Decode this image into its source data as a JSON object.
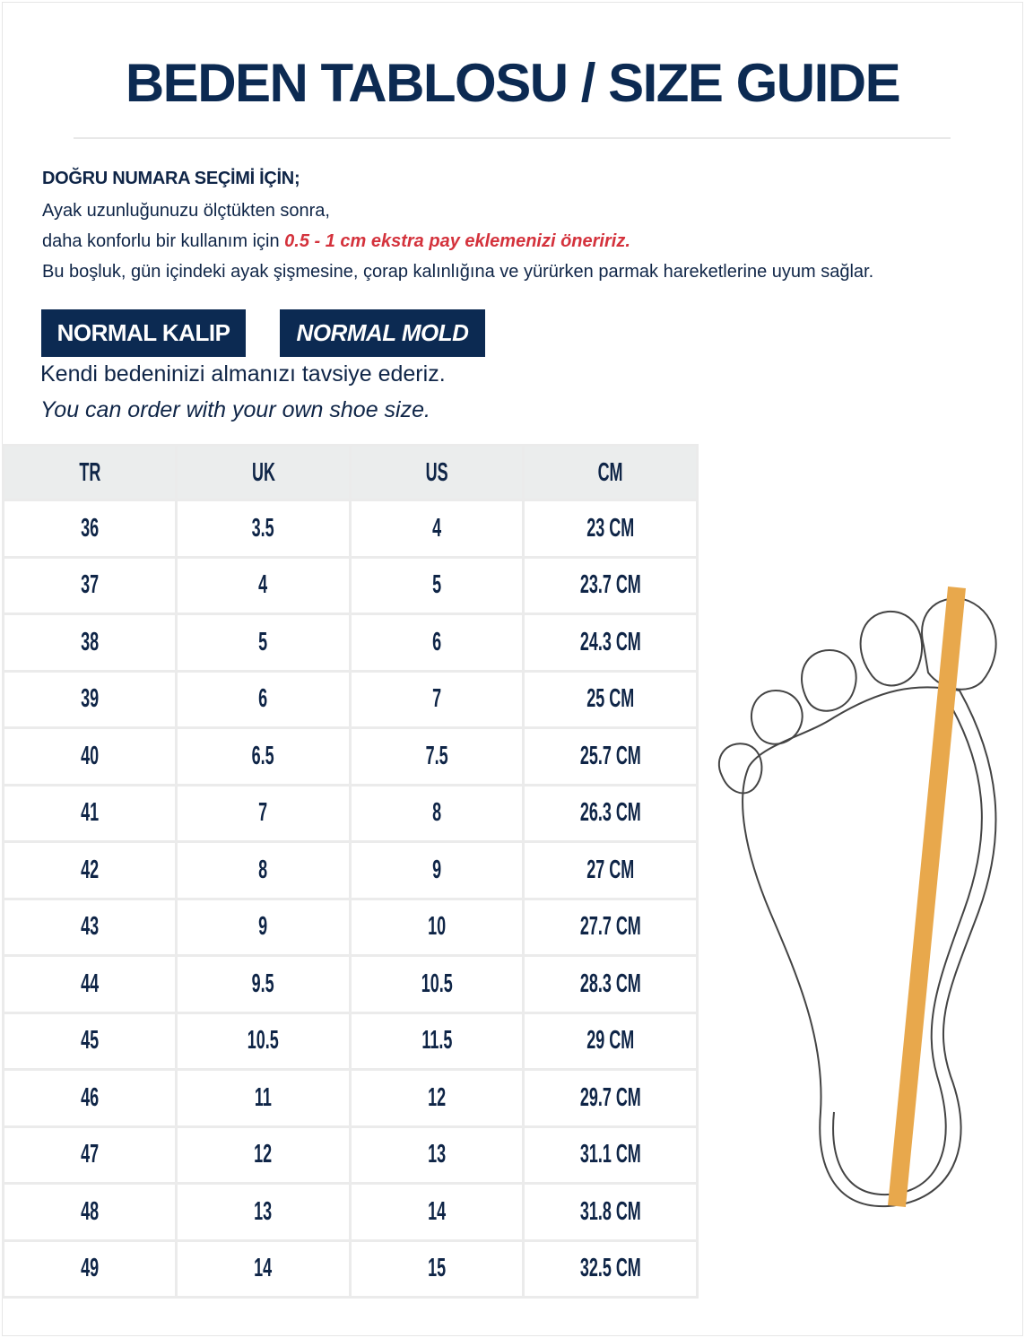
{
  "title": "BEDEN TABLOSU / SIZE GUIDE",
  "intro": {
    "heading": "DOĞRU NUMARA SEÇİMİ İÇİN;",
    "line1": "Ayak uzunluğunuzu ölçtükten sonra,",
    "line2_prefix": "daha konforlu bir kullanım için ",
    "line2_highlight": "0.5 - 1 cm ekstra pay eklemenizi öneririz.",
    "line3": "Bu boşluk, gün içindeki ayak şişmesine, çorap kalınlığına ve yürürken parmak hareketlerine uyum sağlar."
  },
  "badges": [
    "NORMAL KALIP",
    "NORMAL MOLD"
  ],
  "recommendation_tr": "Kendi bedeninizi almanızı tavsiye ederiz.",
  "recommendation_en": "You can order with your own shoe size.",
  "colors": {
    "navy": "#0c2a52",
    "highlight": "#d4323c",
    "ruler": "#e8a84c"
  },
  "table": {
    "headers": [
      "TR",
      "UK",
      "US",
      "CM"
    ],
    "rows": [
      [
        "36",
        "3.5",
        "4",
        "23 CM"
      ],
      [
        "37",
        "4",
        "5",
        "23.7 CM"
      ],
      [
        "38",
        "5",
        "6",
        "24.3 CM"
      ],
      [
        "39",
        "6",
        "7",
        "25 CM"
      ],
      [
        "40",
        "6.5",
        "7.5",
        "25.7 CM"
      ],
      [
        "41",
        "7",
        "8",
        "26.3 CM"
      ],
      [
        "42",
        "8",
        "9",
        "27 CM"
      ],
      [
        "43",
        "9",
        "10",
        "27.7 CM"
      ],
      [
        "44",
        "9.5",
        "10.5",
        "28.3 CM"
      ],
      [
        "45",
        "10.5",
        "11.5",
        "29 CM"
      ],
      [
        "46",
        "11",
        "12",
        "29.7 CM"
      ],
      [
        "47",
        "12",
        "13",
        "31.1 CM"
      ],
      [
        "48",
        "13",
        "14",
        "31.8 CM"
      ],
      [
        "49",
        "14",
        "15",
        "32.5 CM"
      ]
    ]
  },
  "illustration": "foot-outline-with-ruler"
}
